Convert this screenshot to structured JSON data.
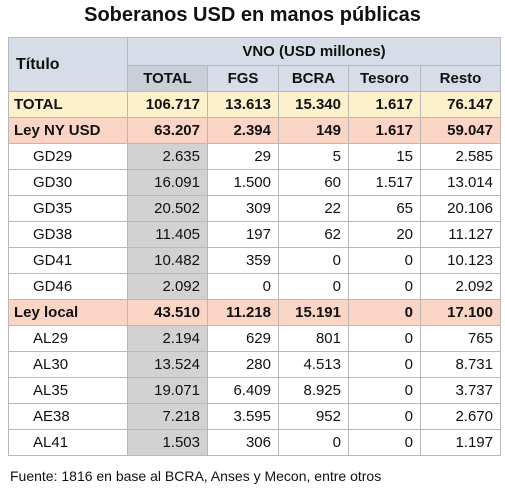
{
  "title": "Soberanos USD en manos públicas",
  "table": {
    "header": {
      "title_col": "Título",
      "group": "VNO (USD millones)",
      "columns": [
        "TOTAL",
        "FGS",
        "BCRA",
        "Tesoro",
        "Resto"
      ]
    },
    "rows": [
      [
        "TOTAL",
        "106.717",
        "13.613",
        "15.340",
        "1.617",
        "76.147"
      ],
      [
        "Ley NY USD",
        "63.207",
        "2.394",
        "149",
        "1.617",
        "59.047"
      ],
      [
        "GD29",
        "2.635",
        "29",
        "5",
        "15",
        "2.585"
      ],
      [
        "GD30",
        "16.091",
        "1.500",
        "60",
        "1.517",
        "13.014"
      ],
      [
        "GD35",
        "20.502",
        "309",
        "22",
        "65",
        "20.106"
      ],
      [
        "GD38",
        "11.405",
        "197",
        "62",
        "20",
        "11.127"
      ],
      [
        "GD41",
        "10.482",
        "359",
        "0",
        "0",
        "10.123"
      ],
      [
        "GD46",
        "2.092",
        "0",
        "0",
        "0",
        "2.092"
      ],
      [
        "Ley local",
        "43.510",
        "11.218",
        "15.191",
        "0",
        "17.100"
      ],
      [
        "AL29",
        "2.194",
        "629",
        "801",
        "0",
        "765"
      ],
      [
        "AL30",
        "13.524",
        "280",
        "4.513",
        "0",
        "8.731"
      ],
      [
        "AL35",
        "19.071",
        "6.409",
        "8.925",
        "0",
        "3.737"
      ],
      [
        "AE38",
        "7.218",
        "3.595",
        "952",
        "0",
        "2.670"
      ],
      [
        "AL41",
        "1.503",
        "306",
        "0",
        "0",
        "1.197"
      ]
    ]
  },
  "source": "Fuente: 1816 en base al BCRA, Anses y Mecon, entre otros"
}
